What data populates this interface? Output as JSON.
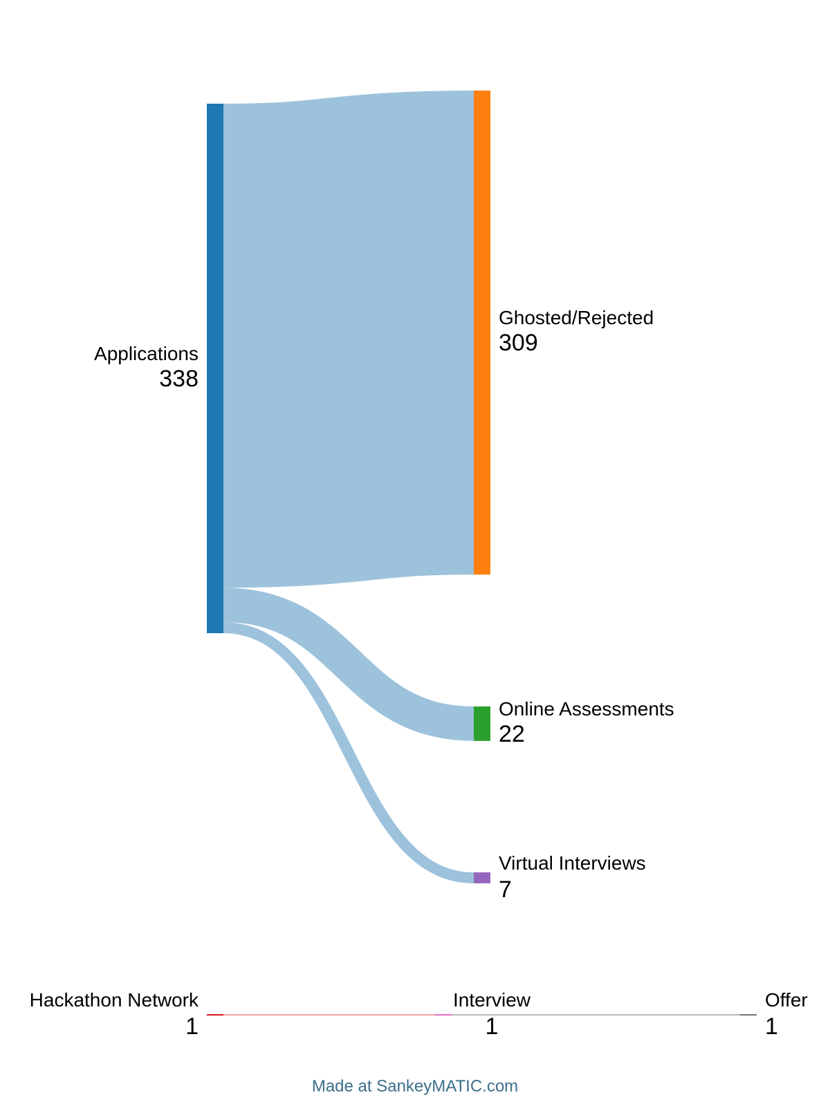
{
  "chart_data": {
    "type": "sankey",
    "nodes": [
      {
        "id": "applications",
        "label": "Applications",
        "value": 338,
        "color": "#1f77b4"
      },
      {
        "id": "ghosted",
        "label": "Ghosted/Rejected",
        "value": 309,
        "color": "#ff7f0e"
      },
      {
        "id": "oa",
        "label": "Online Assessments",
        "value": 22,
        "color": "#2ca02c"
      },
      {
        "id": "vi",
        "label": "Virtual Interviews",
        "value": 7,
        "color": "#9467bd"
      },
      {
        "id": "hackathon",
        "label": "Hackathon Network",
        "value": 1,
        "color": "#d62728"
      },
      {
        "id": "interview",
        "label": "Interview",
        "value": 1,
        "color": "#e377c2"
      },
      {
        "id": "offer",
        "label": "Offer",
        "value": 1,
        "color": "#7f7f7f"
      }
    ],
    "links": [
      {
        "source": "applications",
        "target": "ghosted",
        "value": 309,
        "color": "#9dc2dc"
      },
      {
        "source": "applications",
        "target": "oa",
        "value": 22,
        "color": "#9dc2dc"
      },
      {
        "source": "applications",
        "target": "vi",
        "value": 7,
        "color": "#9dc2dc"
      },
      {
        "source": "hackathon",
        "target": "interview",
        "value": 1,
        "color": "#f4a9aa"
      },
      {
        "source": "interview",
        "target": "offer",
        "value": 1,
        "color": "#bdbdbd"
      }
    ]
  },
  "footer": {
    "credit": "Made at SankeyMATIC.com"
  }
}
